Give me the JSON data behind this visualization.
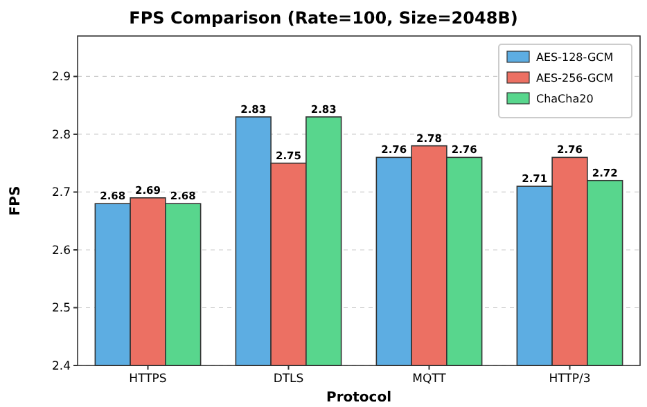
{
  "chart_data": {
    "type": "bar",
    "title": "FPS Comparison (Rate=100, Size=2048B)",
    "xlabel": "Protocol",
    "ylabel": "FPS",
    "categories": [
      "HTTPS",
      "DTLS",
      "MQTT",
      "HTTP/3"
    ],
    "series": [
      {
        "name": "AES-128-GCM",
        "color": "#5dade2",
        "values": [
          2.68,
          2.83,
          2.76,
          2.71
        ]
      },
      {
        "name": "AES-256-GCM",
        "color": "#ec7063",
        "values": [
          2.69,
          2.75,
          2.78,
          2.76
        ]
      },
      {
        "name": "ChaCha20",
        "color": "#58d68d",
        "values": [
          2.68,
          2.83,
          2.76,
          2.72
        ]
      }
    ],
    "ylim": [
      2.4,
      2.97
    ],
    "yticks": [
      2.4,
      2.5,
      2.6,
      2.7,
      2.8,
      2.9
    ],
    "grid": "y",
    "legend": "top right",
    "data_labels": true
  }
}
